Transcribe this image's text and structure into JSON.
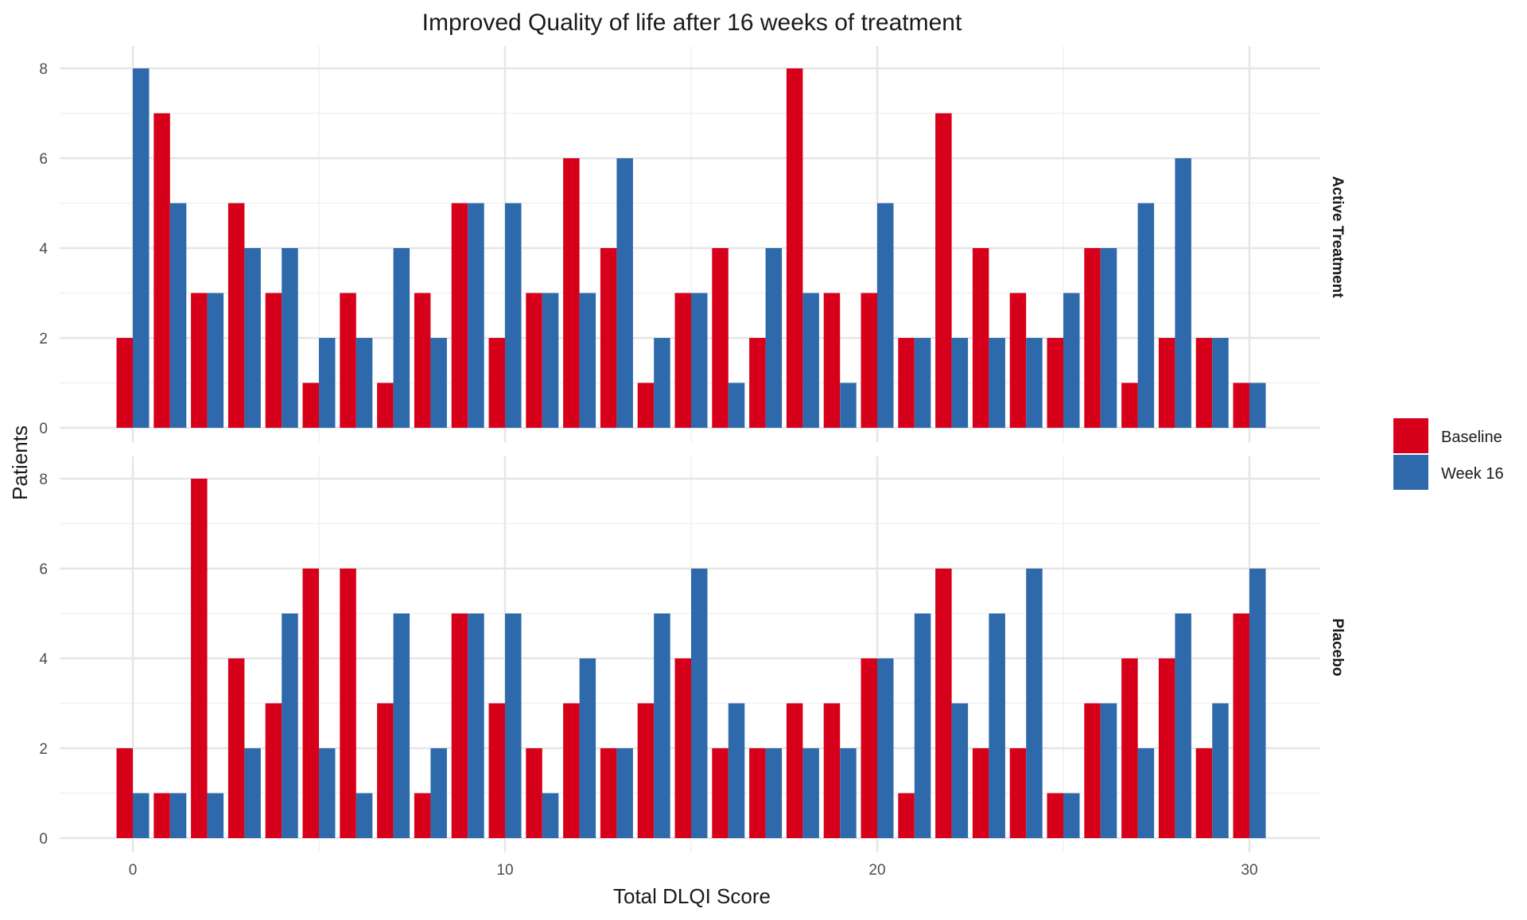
{
  "chart_data": {
    "type": "bar",
    "title": "Improved Quality of life after 16 weeks of treatment",
    "xlabel": "Total DLQI Score",
    "ylabel": "Patients",
    "x": [
      0,
      1,
      2,
      3,
      4,
      5,
      6,
      7,
      8,
      9,
      10,
      11,
      12,
      13,
      14,
      15,
      16,
      17,
      18,
      19,
      20,
      21,
      22,
      23,
      24,
      25,
      26,
      27,
      28,
      29,
      30
    ],
    "x_ticks": [
      0,
      10,
      20,
      30
    ],
    "y_ticks": [
      0,
      2,
      4,
      6,
      8
    ],
    "ylim": [
      0,
      8
    ],
    "grid": true,
    "legend_position": "right",
    "legend": [
      {
        "name": "Baseline",
        "color": "#d7001a"
      },
      {
        "name": "Week 16",
        "color": "#2e6aab"
      }
    ],
    "panels": [
      {
        "label": "Active Treatment",
        "series": [
          {
            "name": "Baseline",
            "values": [
              2,
              7,
              3,
              5,
              3,
              1,
              3,
              1,
              3,
              5,
              2,
              3,
              6,
              4,
              1,
              3,
              4,
              2,
              8,
              3,
              3,
              2,
              7,
              4,
              3,
              2,
              4,
              1,
              2,
              2,
              1
            ]
          },
          {
            "name": "Week 16",
            "values": [
              8,
              5,
              3,
              4,
              4,
              2,
              2,
              4,
              2,
              5,
              5,
              3,
              3,
              6,
              2,
              3,
              1,
              4,
              3,
              1,
              5,
              2,
              2,
              2,
              2,
              3,
              4,
              5,
              6,
              2,
              1
            ]
          }
        ]
      },
      {
        "label": "Placebo",
        "series": [
          {
            "name": "Baseline",
            "values": [
              2,
              1,
              8,
              4,
              3,
              6,
              6,
              3,
              1,
              5,
              3,
              2,
              3,
              2,
              3,
              4,
              2,
              2,
              3,
              3,
              4,
              1,
              6,
              2,
              2,
              1,
              3,
              4,
              4,
              2,
              5
            ]
          },
          {
            "name": "Week 16",
            "values": [
              1,
              1,
              1,
              2,
              5,
              2,
              1,
              5,
              2,
              5,
              5,
              1,
              4,
              2,
              5,
              6,
              3,
              2,
              2,
              2,
              4,
              5,
              3,
              5,
              6,
              1,
              3,
              2,
              5,
              3,
              6
            ]
          }
        ]
      }
    ]
  }
}
